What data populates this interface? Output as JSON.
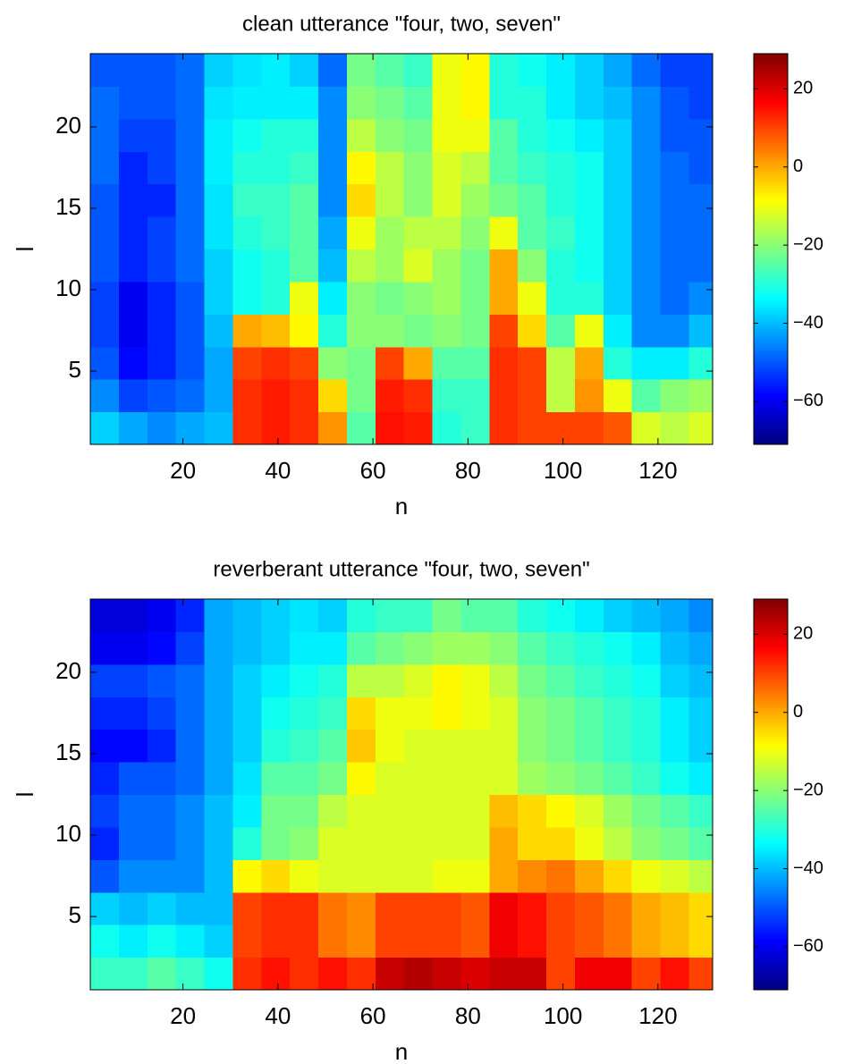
{
  "chart_data": [
    {
      "type": "heatmap",
      "title": "clean utterance \"four, two, seven\"",
      "xlabel": "n",
      "ylabel": "l",
      "colormap": "jet",
      "xbins": [
        0.5,
        6.5,
        12.5,
        18.5,
        24.5,
        30.5,
        36.5,
        42.5,
        48.5,
        54.5,
        60.5,
        66.5,
        72.5,
        78.5,
        84.5,
        90.5,
        96.5,
        102.5,
        108.5,
        114.5,
        120.5,
        126.5,
        131.5
      ],
      "ybins": [
        0.5,
        2.5,
        4.5,
        6.5,
        8.5,
        10.5,
        12.5,
        14.5,
        16.5,
        18.5,
        20.5,
        22.5,
        24.5
      ],
      "z": [
        [
          -38,
          -42,
          -45,
          -42,
          -40,
          12,
          14,
          12,
          2,
          -25,
          15,
          14,
          -30,
          -28,
          12,
          10,
          10,
          10,
          8,
          -12,
          -15,
          -12
        ],
        [
          -45,
          -52,
          -50,
          -48,
          -42,
          12,
          14,
          12,
          -5,
          -22,
          14,
          12,
          -28,
          -28,
          12,
          10,
          -15,
          2,
          -10,
          -25,
          -20,
          -18
        ],
        [
          -50,
          -58,
          -55,
          -50,
          -42,
          10,
          12,
          10,
          -20,
          -22,
          10,
          0,
          -25,
          -25,
          12,
          10,
          -15,
          0,
          -30,
          -35,
          -35,
          -30
        ],
        [
          -52,
          -60,
          -55,
          -50,
          -40,
          0,
          -2,
          -8,
          -30,
          -20,
          -20,
          -22,
          -20,
          -22,
          10,
          -5,
          -25,
          -10,
          -35,
          -45,
          -45,
          -40
        ],
        [
          -52,
          -60,
          -55,
          -50,
          -38,
          -32,
          -30,
          -10,
          -35,
          -20,
          -22,
          -20,
          -18,
          -22,
          0,
          -10,
          -30,
          -30,
          -38,
          -45,
          -48,
          -45
        ],
        [
          -50,
          -55,
          -52,
          -48,
          -38,
          -32,
          -30,
          -25,
          -40,
          -15,
          -18,
          -12,
          -18,
          -22,
          0,
          -20,
          -30,
          -32,
          -38,
          -45,
          -48,
          -48
        ],
        [
          -50,
          -55,
          -52,
          -48,
          -36,
          -30,
          -28,
          -25,
          -42,
          -10,
          -18,
          -15,
          -15,
          -20,
          -10,
          -25,
          -28,
          -32,
          -38,
          -45,
          -48,
          -48
        ],
        [
          -50,
          -55,
          -55,
          -48,
          -36,
          -28,
          -28,
          -25,
          -45,
          -5,
          -15,
          -20,
          -12,
          -18,
          -22,
          -25,
          -30,
          -32,
          -38,
          -45,
          -48,
          -48
        ],
        [
          -48,
          -55,
          -52,
          -48,
          -35,
          -30,
          -30,
          -28,
          -45,
          -8,
          -15,
          -20,
          -12,
          -15,
          -25,
          -28,
          -30,
          -32,
          -38,
          -45,
          -48,
          -50
        ],
        [
          -48,
          -52,
          -52,
          -48,
          -35,
          -32,
          -30,
          -30,
          -45,
          -15,
          -20,
          -22,
          -10,
          -10,
          -25,
          -30,
          -32,
          -35,
          -38,
          -45,
          -50,
          -50
        ],
        [
          -48,
          -50,
          -50,
          -48,
          -36,
          -35,
          -35,
          -35,
          -45,
          -20,
          -22,
          -25,
          -10,
          -8,
          -30,
          -30,
          -35,
          -38,
          -40,
          -45,
          -50,
          -52
        ],
        [
          -50,
          -50,
          -50,
          -48,
          -38,
          -36,
          -35,
          -38,
          -48,
          -22,
          -25,
          -28,
          -10,
          -8,
          -30,
          -32,
          -35,
          -38,
          -42,
          -48,
          -52,
          -52
        ]
      ],
      "xlim": [
        0.5,
        131.5
      ],
      "ylim": [
        0.5,
        24.5
      ],
      "xticks": [
        20,
        40,
        60,
        80,
        100,
        120
      ],
      "yticks": [
        5,
        10,
        15,
        20
      ],
      "clim": [
        -71,
        29
      ],
      "cticks": [
        {
          "value": -60,
          "label": "−60"
        },
        {
          "value": -40,
          "label": "−40"
        },
        {
          "value": -20,
          "label": "−20"
        },
        0,
        20
      ]
    },
    {
      "type": "heatmap",
      "title": "reverberant utterance \"four, two, seven\"",
      "xlabel": "n",
      "ylabel": "l",
      "colormap": "jet",
      "xbins": [
        0.5,
        6.5,
        12.5,
        18.5,
        24.5,
        30.5,
        36.5,
        42.5,
        48.5,
        54.5,
        60.5,
        66.5,
        72.5,
        78.5,
        84.5,
        90.5,
        96.5,
        102.5,
        108.5,
        114.5,
        120.5,
        126.5,
        131.5
      ],
      "ybins": [
        0.5,
        2.5,
        4.5,
        6.5,
        8.5,
        10.5,
        12.5,
        14.5,
        16.5,
        18.5,
        20.5,
        22.5,
        24.5
      ],
      "z": [
        [
          -28,
          -28,
          -25,
          -28,
          -32,
          12,
          15,
          12,
          15,
          12,
          22,
          24,
          22,
          20,
          22,
          22,
          10,
          18,
          18,
          10,
          15,
          10
        ],
        [
          -32,
          -35,
          -32,
          -35,
          -38,
          10,
          12,
          12,
          5,
          3,
          10,
          10,
          10,
          8,
          18,
          15,
          10,
          8,
          5,
          0,
          -2,
          -5
        ],
        [
          -38,
          -40,
          -38,
          -40,
          -40,
          10,
          12,
          12,
          5,
          3,
          10,
          10,
          10,
          8,
          18,
          15,
          10,
          8,
          5,
          0,
          -2,
          -5
        ],
        [
          -50,
          -45,
          -45,
          -45,
          -40,
          -8,
          -5,
          -10,
          -12,
          -12,
          -12,
          -12,
          -10,
          -10,
          0,
          3,
          5,
          0,
          -5,
          -10,
          -12,
          -15
        ],
        [
          -55,
          -48,
          -48,
          -45,
          -40,
          -30,
          -22,
          -20,
          -12,
          -12,
          -12,
          -12,
          -12,
          -12,
          0,
          -5,
          -5,
          -10,
          -15,
          -20,
          -22,
          -25
        ],
        [
          -52,
          -48,
          -48,
          -45,
          -40,
          -35,
          -22,
          -22,
          -15,
          -12,
          -12,
          -12,
          -12,
          -12,
          -2,
          -5,
          -8,
          -12,
          -18,
          -22,
          -25,
          -28
        ],
        [
          -55,
          -50,
          -50,
          -48,
          -42,
          -36,
          -25,
          -25,
          -22,
          -8,
          -12,
          -12,
          -12,
          -12,
          -12,
          -18,
          -20,
          -22,
          -25,
          -28,
          -32,
          -35
        ],
        [
          -58,
          -58,
          -55,
          -48,
          -42,
          -38,
          -30,
          -28,
          -25,
          -3,
          -10,
          -12,
          -12,
          -12,
          -12,
          -20,
          -22,
          -25,
          -28,
          -30,
          -35,
          -38
        ],
        [
          -55,
          -55,
          -52,
          -48,
          -42,
          -38,
          -32,
          -30,
          -28,
          -5,
          -10,
          -10,
          -8,
          -10,
          -12,
          -20,
          -22,
          -25,
          -28,
          -30,
          -35,
          -38
        ],
        [
          -52,
          -52,
          -50,
          -48,
          -42,
          -38,
          -35,
          -32,
          -30,
          -15,
          -15,
          -12,
          -8,
          -10,
          -15,
          -22,
          -25,
          -28,
          -30,
          -32,
          -38,
          -40
        ],
        [
          -60,
          -60,
          -58,
          -52,
          -42,
          -40,
          -38,
          -35,
          -35,
          -25,
          -22,
          -20,
          -18,
          -18,
          -20,
          -25,
          -28,
          -30,
          -32,
          -35,
          -40,
          -42
        ],
        [
          -62,
          -62,
          -60,
          -55,
          -42,
          -40,
          -38,
          -36,
          -38,
          -30,
          -28,
          -28,
          -22,
          -25,
          -25,
          -30,
          -32,
          -35,
          -38,
          -40,
          -42,
          -45
        ]
      ],
      "xlim": [
        0.5,
        131.5
      ],
      "ylim": [
        0.5,
        24.5
      ],
      "xticks": [
        20,
        40,
        60,
        80,
        100,
        120
      ],
      "yticks": [
        5,
        10,
        15,
        20
      ],
      "clim": [
        -71,
        29
      ],
      "cticks": [
        {
          "value": -60,
          "label": "−60"
        },
        {
          "value": -40,
          "label": "−40"
        },
        {
          "value": -20,
          "label": "−20"
        },
        0,
        20
      ]
    }
  ]
}
